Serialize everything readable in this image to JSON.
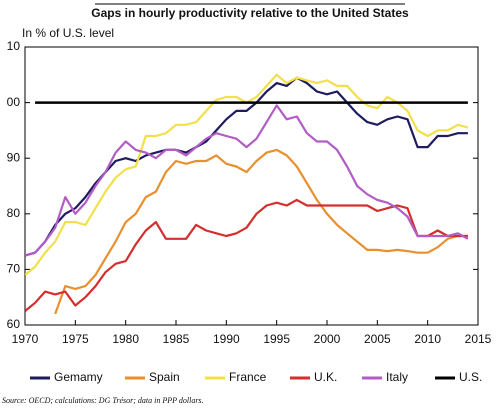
{
  "chart_data": {
    "type": "line",
    "title": "Gaps in hourly productivity relative to the United States",
    "y_label": "In % of U.S. level",
    "source": "Source: OECD; calculations: DG Trésor; data in PPP dollars.",
    "x": [
      1970,
      1971,
      1972,
      1973,
      1974,
      1975,
      1976,
      1977,
      1978,
      1979,
      1980,
      1981,
      1982,
      1983,
      1984,
      1985,
      1986,
      1987,
      1988,
      1989,
      1990,
      1991,
      1992,
      1993,
      1994,
      1995,
      1996,
      1997,
      1998,
      1999,
      2000,
      2001,
      2002,
      2003,
      2004,
      2005,
      2006,
      2007,
      2008,
      2009,
      2010,
      2011,
      2012,
      2013,
      2014
    ],
    "xlim": [
      1970,
      2015
    ],
    "xticks": [
      1970,
      1975,
      1980,
      1985,
      1990,
      1995,
      2000,
      2005,
      2010,
      2015
    ],
    "ylim": [
      60,
      110
    ],
    "yticks": [
      60,
      70,
      80,
      90,
      {
        "value": 100,
        "label": "00"
      },
      {
        "value": 110,
        "label": "10"
      }
    ],
    "grid": false,
    "legend": "bottom",
    "series": [
      {
        "name": "Gemamy",
        "color": "#1e1b5e",
        "values": [
          72.5,
          73,
          75,
          78,
          80,
          81,
          83,
          85.5,
          87.5,
          89.5,
          90,
          89.5,
          90.5,
          91,
          91.5,
          91.5,
          91,
          92,
          93,
          95,
          97,
          98.5,
          98.5,
          100,
          102,
          103.5,
          103,
          104.5,
          103.5,
          102,
          101.5,
          102,
          100,
          98,
          96.5,
          96,
          97,
          97.5,
          97,
          92,
          92,
          94,
          94,
          94.5,
          94.5
        ]
      },
      {
        "name": "Spain",
        "color": "#e8902f",
        "values": [
          null,
          null,
          null,
          62,
          67,
          66.5,
          67,
          69,
          72,
          75,
          78.5,
          80,
          83,
          84,
          87.5,
          89.5,
          89,
          89.5,
          89.5,
          90.5,
          89,
          88.5,
          87.5,
          89.5,
          91,
          91.5,
          90.5,
          88.5,
          85.5,
          82.5,
          80,
          78,
          76.5,
          75,
          73.5,
          73.5,
          73.3,
          73.5,
          73.3,
          73,
          73,
          74,
          75.5,
          76,
          76
        ]
      },
      {
        "name": "France",
        "color": "#f2e04a",
        "values": [
          69,
          70.5,
          73,
          75,
          78.5,
          78.5,
          78,
          81,
          84,
          86.5,
          88,
          88.5,
          94,
          94,
          94.5,
          96,
          96,
          96.5,
          98.5,
          100.5,
          101,
          101,
          100,
          101,
          103,
          105,
          103.5,
          104.5,
          104,
          103.5,
          104,
          103,
          103,
          101,
          99.5,
          99,
          101,
          100,
          98.5,
          95,
          94,
          95,
          95,
          96,
          95.5
        ]
      },
      {
        "name": "U.K.",
        "color": "#d42e2e",
        "values": [
          62.5,
          64,
          66,
          65.5,
          66,
          63.5,
          65,
          67,
          69.5,
          71,
          71.5,
          74.5,
          77,
          78.5,
          75.5,
          75.5,
          75.5,
          78,
          77,
          76.5,
          76,
          76.5,
          77.5,
          80,
          81.5,
          82,
          81.5,
          82.5,
          81.5,
          81.5,
          81.5,
          81.5,
          81.5,
          81.5,
          81.5,
          80.5,
          81,
          81.5,
          81,
          76,
          76,
          77,
          76,
          76,
          76
        ]
      },
      {
        "name": "Italy",
        "color": "#b25cc6",
        "values": [
          72.5,
          73,
          75,
          77.5,
          83,
          80,
          82,
          85,
          87.5,
          91,
          93,
          91.5,
          91,
          90,
          91.5,
          91.5,
          90.5,
          92,
          93.5,
          94.5,
          94,
          93.5,
          92,
          93.5,
          96.5,
          99.5,
          97,
          97.5,
          94.5,
          93,
          93,
          91.5,
          88.5,
          85,
          83.5,
          82.5,
          82,
          81,
          79.5,
          76,
          76,
          76,
          76,
          76.5,
          75.5
        ]
      },
      {
        "name": "U.S.",
        "color": "#000000",
        "values": [
          null,
          100,
          100,
          100,
          100,
          100,
          100,
          100,
          100,
          100,
          100,
          100,
          100,
          100,
          100,
          100,
          100,
          100,
          100,
          100,
          100,
          100,
          100,
          100,
          100,
          100,
          100,
          100,
          100,
          100,
          100,
          100,
          100,
          100,
          100,
          100,
          100,
          100,
          100,
          100,
          100,
          100,
          100,
          100,
          100
        ]
      }
    ]
  }
}
